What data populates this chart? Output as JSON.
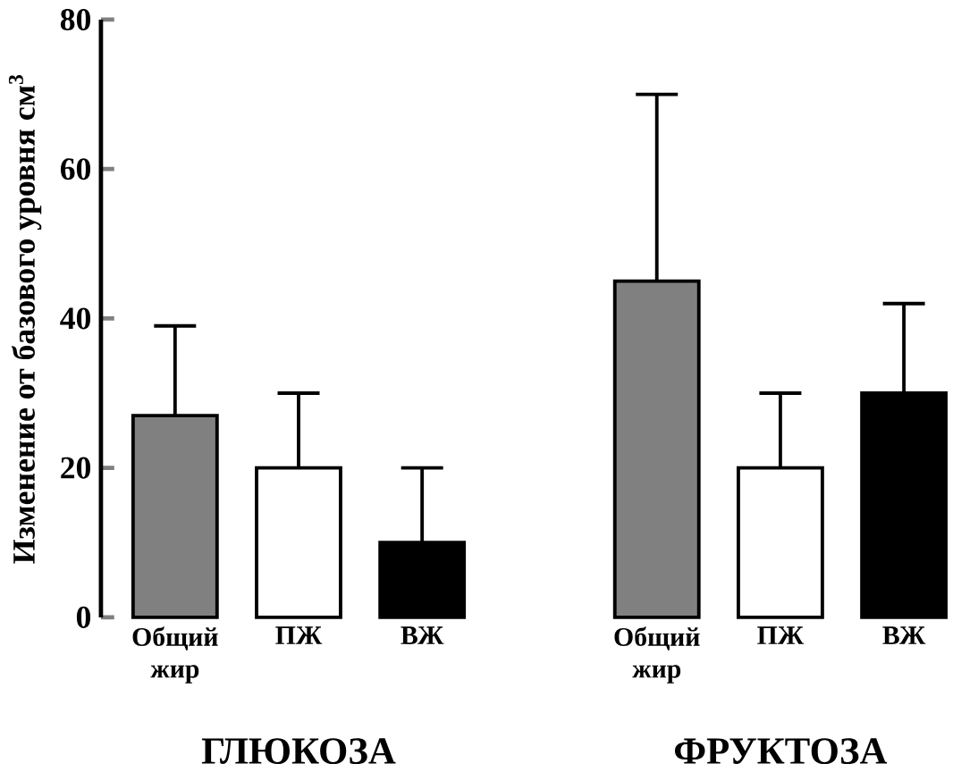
{
  "chart_data": {
    "type": "bar",
    "ylabel": "Изменение от базового уровня см$^{3}$",
    "categories": [
      "Общий жир",
      "ПЖ",
      "ВЖ",
      "Общий жир",
      "ПЖ",
      "ВЖ"
    ],
    "values": [
      27,
      20,
      10,
      45,
      20,
      30
    ],
    "colors": [
      "#808080",
      "#ffffff",
      "#000000",
      "#808080",
      "#ffffff",
      "#000000"
    ],
    "errors": [
      [
        27,
        39
      ],
      [
        20,
        30
      ],
      [
        10,
        20
      ],
      [
        45,
        70
      ],
      [
        20,
        30
      ],
      [
        30,
        42
      ]
    ],
    "ylim": [
      0,
      80
    ],
    "yticks": [
      0,
      20,
      40,
      60,
      80
    ],
    "grid": false,
    "annotations": [
      "ГЛЮКОЗА",
      "ФРУКТОЗА"
    ]
  }
}
